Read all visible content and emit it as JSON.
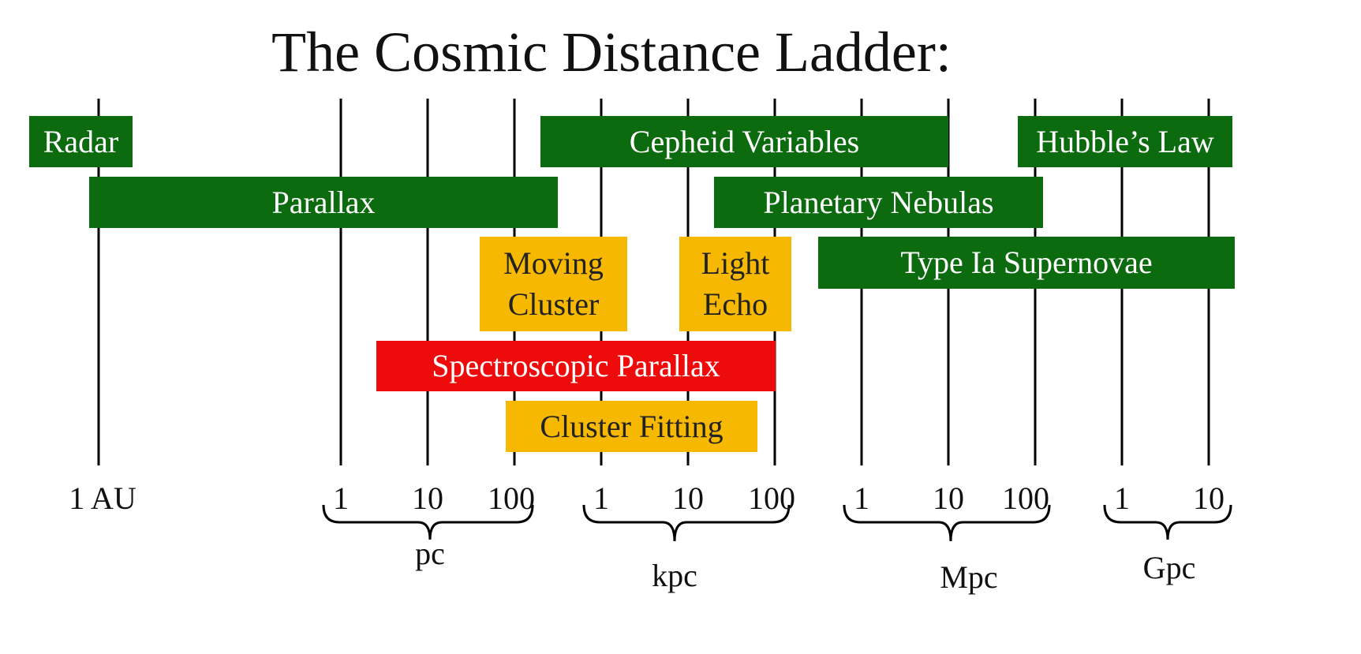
{
  "title": "The Cosmic Distance Ladder:",
  "methods": [
    {
      "label": "Radar"
    },
    {
      "label": "Cepheid Variables"
    },
    {
      "label": "Hubble’s Law"
    },
    {
      "label": "Parallax"
    },
    {
      "label": "Planetary Nebulas"
    },
    {
      "lines": [
        "Moving",
        "Cluster"
      ]
    },
    {
      "lines": [
        "Light",
        "Echo"
      ]
    },
    {
      "label": "Type Ia Supernovae"
    },
    {
      "label": "Spectroscopic Parallax"
    },
    {
      "label": "Cluster Fitting"
    }
  ],
  "scale": {
    "ticks": [
      "1 AU",
      "1",
      "10",
      "100",
      "1",
      "10",
      "100",
      "1",
      "10",
      "100",
      "1",
      "10"
    ],
    "units": [
      "pc",
      "kpc",
      "Mpc",
      "Gpc"
    ]
  }
}
